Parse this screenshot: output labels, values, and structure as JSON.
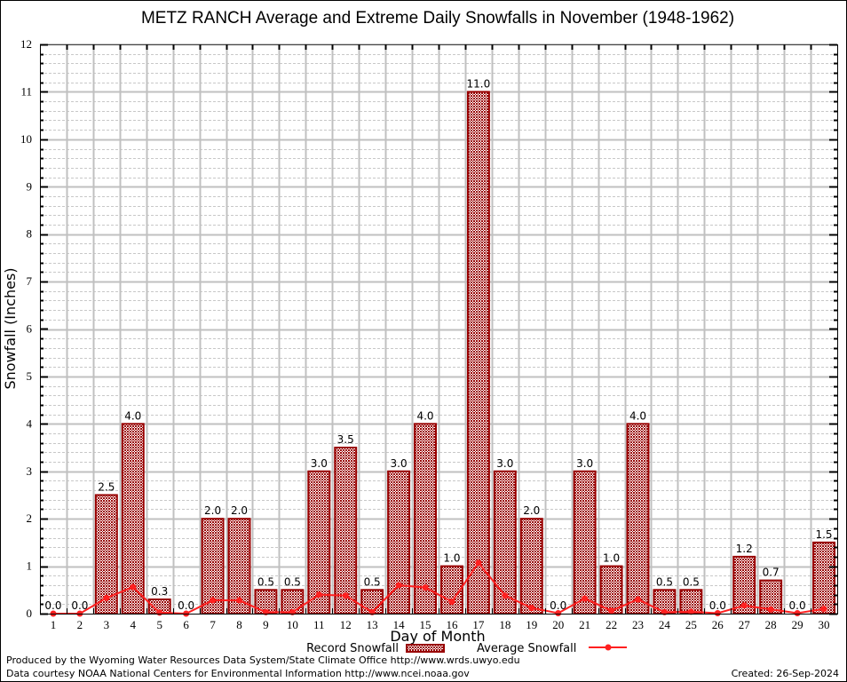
{
  "chart_data": {
    "type": "bar",
    "title": "METZ RANCH Average and Extreme Daily Snowfalls in November (1948-1962)",
    "xlabel": "Day of Month",
    "ylabel": "Snowfall (Inches)",
    "ylim": [
      0,
      12
    ],
    "yticks": [
      "0",
      "1",
      "2",
      "3",
      "4",
      "5",
      "6",
      "7",
      "8",
      "9",
      "10",
      "11",
      "12"
    ],
    "grid": true,
    "categories": [
      "1",
      "2",
      "3",
      "4",
      "5",
      "6",
      "7",
      "8",
      "9",
      "10",
      "11",
      "12",
      "13",
      "14",
      "15",
      "16",
      "17",
      "18",
      "19",
      "20",
      "21",
      "22",
      "23",
      "24",
      "25",
      "26",
      "27",
      "28",
      "29",
      "30"
    ],
    "series": [
      {
        "name": "Record Snowfall",
        "type": "bar",
        "color": "#990000",
        "values": [
          0.0,
          0.0,
          2.5,
          4.0,
          0.3,
          0.0,
          2.0,
          2.0,
          0.5,
          0.5,
          3.0,
          3.5,
          0.5,
          3.0,
          4.0,
          1.0,
          11.0,
          3.0,
          2.0,
          0.0,
          3.0,
          1.0,
          4.0,
          0.5,
          0.5,
          0.0,
          1.2,
          0.7,
          0.0,
          1.5
        ],
        "labels": [
          "0.0",
          "0.0",
          "2.5",
          "4.0",
          "0.3",
          "0.0",
          "2.0",
          "2.0",
          "0.5",
          "0.5",
          "3.0",
          "3.5",
          "0.5",
          "3.0",
          "4.0",
          "1.0",
          "11.0",
          "3.0",
          "2.0",
          "0.0",
          "3.0",
          "1.0",
          "4.0",
          "0.5",
          "0.5",
          "0.0",
          "1.2",
          "0.7",
          "0.0",
          "1.5"
        ]
      },
      {
        "name": "Average Snowfall",
        "type": "line",
        "color": "#ff2020",
        "values": [
          0.0,
          0.0,
          0.33,
          0.56,
          0.02,
          0.0,
          0.28,
          0.28,
          0.03,
          0.03,
          0.4,
          0.38,
          0.03,
          0.6,
          0.55,
          0.25,
          1.07,
          0.38,
          0.12,
          0.01,
          0.32,
          0.06,
          0.3,
          0.03,
          0.04,
          0.01,
          0.17,
          0.09,
          0.01,
          0.1
        ]
      }
    ],
    "legend_position": "bottom"
  },
  "footer": {
    "produced_by": "Produced by the Wyoming Water Resources Data System/State Climate Office http://www.wrds.uwyo.edu",
    "data_courtesy": "Data courtesy NOAA National Centers for Environmental Information http://www.ncei.noaa.gov",
    "created": "Created: 26-Sep-2024"
  }
}
